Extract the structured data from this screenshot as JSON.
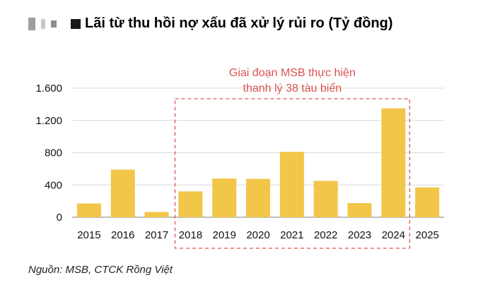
{
  "title": "Lãi từ thu hồi nợ xấu đã xử lý rủi ro (Tỷ đồng)",
  "source": "Nguồn: MSB, CTCK Rồng Việt",
  "colors": {
    "bar": "#F2C649",
    "annotation": "#D9534F",
    "grid": "#d9d9d9",
    "axis": "#999999"
  },
  "chart_data": {
    "type": "bar",
    "title": "Lãi từ thu hồi nợ xấu đã xử lý rủi ro (Tỷ đồng)",
    "categories": [
      "2015",
      "2016",
      "2017",
      "2018",
      "2019",
      "2020",
      "2021",
      "2022",
      "2023",
      "2024",
      "2025"
    ],
    "values": [
      170,
      590,
      65,
      320,
      480,
      475,
      810,
      450,
      175,
      1350,
      370
    ],
    "ylim": [
      0,
      1600
    ],
    "yticks": [
      0,
      400,
      800,
      1200,
      1600
    ],
    "ytick_labels": [
      "0",
      "400",
      "800",
      "1.200",
      "1.600"
    ],
    "grid": true,
    "xlabel": "",
    "ylabel": "",
    "annotation": {
      "lines": [
        "Giai đoạn MSB thực hiện",
        "thanh lý 38 tàu biển"
      ],
      "from": "2018",
      "to": "2024"
    }
  }
}
